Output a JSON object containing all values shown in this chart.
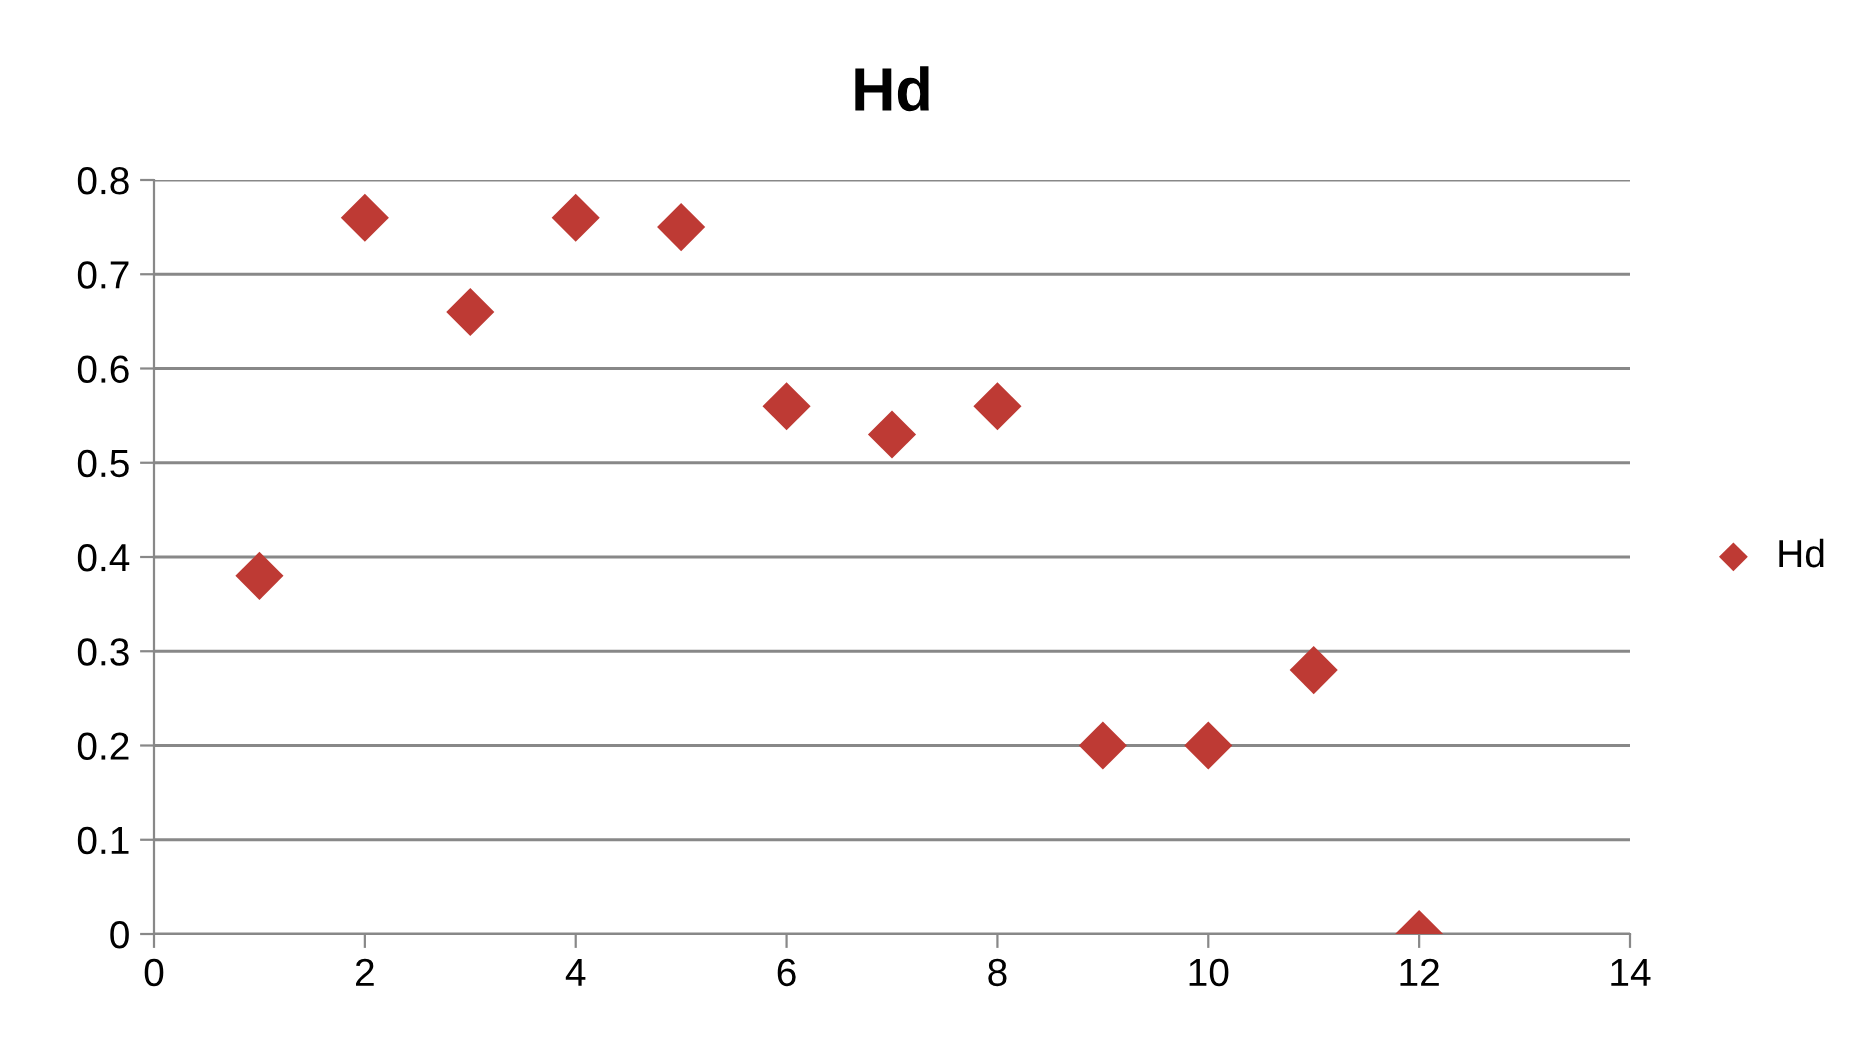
{
  "chart_data": {
    "type": "scatter",
    "title": "Hd",
    "x": [
      1,
      2,
      3,
      4,
      5,
      6,
      7,
      8,
      9,
      10,
      11,
      12
    ],
    "series": [
      {
        "name": "Hd",
        "color": "#be3a34",
        "values": [
          0.38,
          0.76,
          0.66,
          0.76,
          0.75,
          0.56,
          0.53,
          0.56,
          0.2,
          0.2,
          0.28,
          0
        ]
      }
    ],
    "xlim": [
      0,
      14
    ],
    "xticks": [
      0,
      2,
      4,
      6,
      8,
      10,
      12,
      14
    ],
    "ylim": [
      0,
      0.8
    ],
    "yticks": [
      0,
      0.1,
      0.2,
      0.3,
      0.4,
      0.5,
      0.6,
      0.7,
      0.8
    ],
    "grid": "y",
    "legend": "right",
    "marker": "diamond"
  }
}
